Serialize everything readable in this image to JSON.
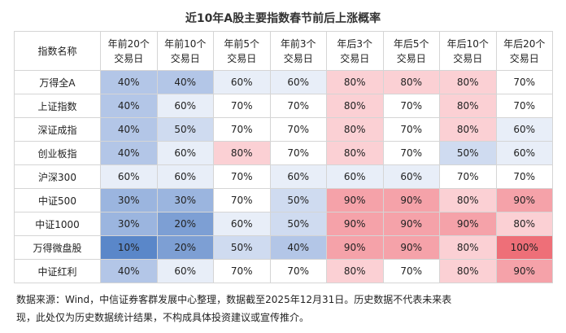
{
  "title": "近10年A股主要指数春节前后上涨概率",
  "table": {
    "corner_header": "指数名称",
    "columns": [
      {
        "line1": "年前20个",
        "line2": "交易日"
      },
      {
        "line1": "年前10个",
        "line2": "交易日"
      },
      {
        "line1": "年前5个",
        "line2": "交易日"
      },
      {
        "line1": "年前3个",
        "line2": "交易日"
      },
      {
        "line1": "年后3个",
        "line2": "交易日"
      },
      {
        "line1": "年后5个",
        "line2": "交易日"
      },
      {
        "line1": "年后10个",
        "line2": "交易日"
      },
      {
        "line1": "年后20个",
        "line2": "交易日"
      }
    ],
    "rows": [
      {
        "name": "万得全A",
        "values": [
          "40%",
          "40%",
          "60%",
          "60%",
          "80%",
          "80%",
          "80%",
          "70%"
        ]
      },
      {
        "name": "上证指数",
        "values": [
          "40%",
          "60%",
          "70%",
          "70%",
          "80%",
          "70%",
          "80%",
          "70%"
        ]
      },
      {
        "name": "深证成指",
        "values": [
          "40%",
          "50%",
          "70%",
          "70%",
          "80%",
          "70%",
          "80%",
          "60%"
        ]
      },
      {
        "name": "创业板指",
        "values": [
          "40%",
          "60%",
          "80%",
          "70%",
          "80%",
          "70%",
          "50%",
          "60%"
        ]
      },
      {
        "name": "沪深300",
        "values": [
          "60%",
          "60%",
          "70%",
          "60%",
          "60%",
          "60%",
          "70%",
          "70%"
        ]
      },
      {
        "name": "中证500",
        "values": [
          "30%",
          "30%",
          "70%",
          "50%",
          "90%",
          "90%",
          "80%",
          "90%"
        ]
      },
      {
        "name": "中证1000",
        "values": [
          "30%",
          "20%",
          "60%",
          "50%",
          "90%",
          "90%",
          "90%",
          "80%"
        ]
      },
      {
        "name": "万得微盘股",
        "values": [
          "10%",
          "20%",
          "50%",
          "40%",
          "90%",
          "90%",
          "80%",
          "100%"
        ]
      },
      {
        "name": "中证红利",
        "values": [
          "40%",
          "60%",
          "70%",
          "70%",
          "80%",
          "70%",
          "80%",
          "90%"
        ]
      }
    ],
    "colors": {
      "10": "#5a87c9",
      "20": "#7d9fd4",
      "30": "#9bb5df",
      "40": "#b3c6e7",
      "50": "#cfdbf0",
      "60": "#e8eef8",
      "70": "#ffffff",
      "80": "#fbd0d4",
      "90": "#f5a2a9",
      "100": "#ee6f78"
    }
  },
  "footnote": {
    "line1": "数据来源：Wind，中信证券客群发展中心整理，数据截至2025年12月31日。历史数据不代表未来表",
    "line2": "现，此处仅为历史数据统计结果，不构成具体投资建议或宣传推介。"
  }
}
